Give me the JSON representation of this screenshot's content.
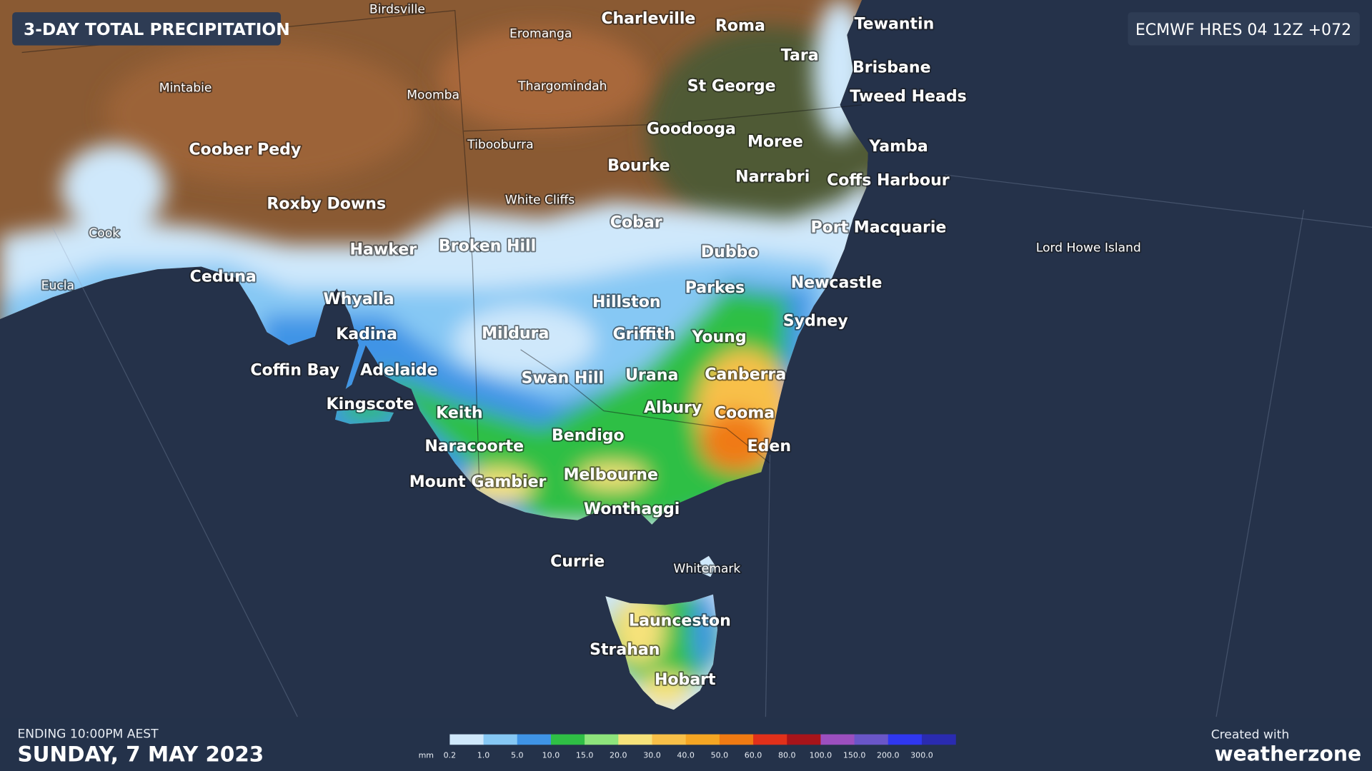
{
  "header": {
    "title": "3-DAY TOTAL PRECIPITATION",
    "model": "ECMWF HRES 04 12Z +072"
  },
  "places": [
    "Birdsville",
    "Charleville",
    "Roma",
    "Tewantin",
    "Eromanga",
    "Tara",
    "Brisbane",
    "Mintabie",
    "Moomba",
    "Thargomindah",
    "St George",
    "Tweed Heads",
    "Goodooga",
    "Moree",
    "Yamba",
    "Tibooburra",
    "Coober Pedy",
    "Bourke",
    "Narrabri",
    "Coffs Harbour",
    "White Cliffs",
    "Roxby Downs",
    "Cobar",
    "Port Macquarie",
    "Cook",
    "Lord Howe Island",
    "Hawker",
    "Broken Hill",
    "Dubbo",
    "Ceduna",
    "Newcastle",
    "Eucla",
    "Parkes",
    "Whyalla",
    "Hillston",
    "Sydney",
    "Kadina",
    "Mildura",
    "Griffith",
    "Young",
    "Coffin Bay",
    "Adelaide",
    "Canberra",
    "Swan Hill",
    "Urana",
    "Kingscote",
    "Albury",
    "Cooma",
    "Keith",
    "Bendigo",
    "Naracoorte",
    "Eden",
    "Melbourne",
    "Mount Gambier",
    "Wonthaggi",
    "Currie",
    "Whitemark",
    "Launceston",
    "Strahan",
    "Hobart"
  ],
  "legend": {
    "unit": "mm",
    "items": [
      {
        "label": "0.2",
        "color": "#cfe8fb"
      },
      {
        "label": "1.0",
        "color": "#86c8f4"
      },
      {
        "label": "5.0",
        "color": "#3f94e6"
      },
      {
        "label": "10.0",
        "color": "#2fbf45"
      },
      {
        "label": "15.0",
        "color": "#8ee47c"
      },
      {
        "label": "20.0",
        "color": "#f6e27a"
      },
      {
        "label": "30.0",
        "color": "#f8c048"
      },
      {
        "label": "40.0",
        "color": "#f5a623"
      },
      {
        "label": "50.0",
        "color": "#f07a12"
      },
      {
        "label": "60.0",
        "color": "#e1301a"
      },
      {
        "label": "80.0",
        "color": "#a8141a"
      },
      {
        "label": "100.0",
        "color": "#9c4fbf"
      },
      {
        "label": "150.0",
        "color": "#6a56c8"
      },
      {
        "label": "200.0",
        "color": "#2f37f0"
      },
      {
        "label": "300.0",
        "color": "#2a2bb0"
      }
    ]
  },
  "footer": {
    "ending": "ENDING 10:00PM AEST",
    "date": "SUNDAY, 7 MAY 2023",
    "credit": "Created with",
    "brand": "weatherzone"
  }
}
